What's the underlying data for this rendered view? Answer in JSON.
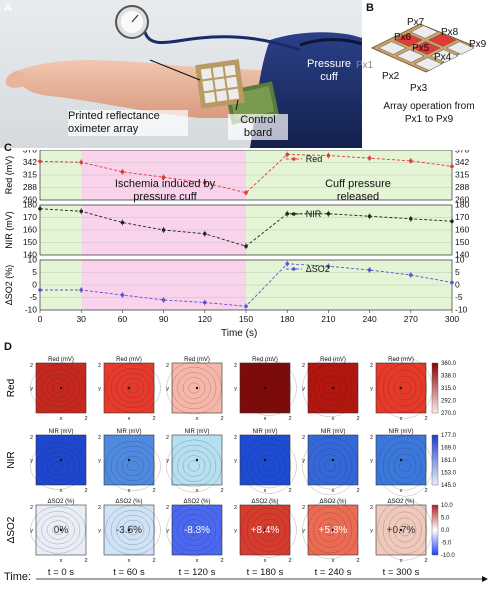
{
  "panel_labels": {
    "A": "A",
    "B": "B",
    "C": "C",
    "D": "D"
  },
  "photo": {
    "pressure_cuff": "Pressure cuff",
    "oximeter_array": "Printed reflectance oximeter array",
    "control_board": "Control board"
  },
  "array": {
    "pixels": [
      "Px1",
      "Px2",
      "Px3",
      "Px4",
      "Px5",
      "Px6",
      "Px7",
      "Px8",
      "Px9"
    ],
    "caption": "Array operation from Px1 to Px9"
  },
  "chart_data": [
    {
      "type": "line",
      "ylabel": "Red (mV)",
      "legend": "Red",
      "color": "#e53935",
      "ylim": [
        260,
        370
      ],
      "yticks": [
        260,
        288,
        315,
        342,
        370
      ],
      "x": [
        0,
        30,
        60,
        90,
        120,
        150,
        180,
        210,
        240,
        270,
        300
      ],
      "values": [
        345,
        343,
        322,
        310,
        298,
        276,
        360,
        358,
        352,
        346,
        334
      ]
    },
    {
      "type": "line",
      "ylabel": "NIR (mV)",
      "legend": "NIR",
      "color": "#222222",
      "ylim": [
        140,
        180
      ],
      "yticks": [
        140,
        150,
        160,
        170,
        180
      ],
      "x": [
        0,
        30,
        60,
        90,
        120,
        150,
        180,
        210,
        240,
        270,
        300
      ],
      "values": [
        177,
        175,
        166,
        160,
        157,
        147,
        173,
        173,
        171,
        169,
        167
      ]
    },
    {
      "type": "line",
      "ylabel": "ΔSO2 (%)",
      "legend": "ΔSO2",
      "color": "#5b4fd6",
      "ylim": [
        -10,
        10
      ],
      "yticks": [
        -10,
        -5,
        0,
        5,
        10
      ],
      "x": [
        0,
        30,
        60,
        90,
        120,
        150,
        180,
        210,
        240,
        270,
        300
      ],
      "values": [
        -2,
        -2,
        -4,
        -6,
        -7,
        -8.5,
        8.5,
        7.5,
        6,
        4,
        1
      ]
    }
  ],
  "line_chart_common": {
    "xlabel": "Time (s)",
    "xticks": [
      0,
      30,
      60,
      90,
      120,
      150,
      180,
      210,
      240,
      270,
      300
    ],
    "annotation_ischemia": "Ischemia induced by pressure cuff",
    "annotation_release": "Cuff pressure released"
  },
  "maps": {
    "row_labels": [
      "Red",
      "NIR",
      "ΔSO2"
    ],
    "titles": [
      "Red (mV)",
      "NIR (mV)",
      "ΔSO2 (%)"
    ],
    "times": [
      "t = 0 s",
      "t = 60 s",
      "t = 120 s",
      "t = 180 s",
      "t = 240 s",
      "t = 300 s"
    ],
    "time_label": "Time:",
    "so2_values": [
      "0%",
      "-3.5%",
      "-8.8%",
      "+8.4%",
      "+5.8%",
      "+0.7%"
    ],
    "colorbars": [
      {
        "ticks": [
          "360.0",
          "338.0",
          "315.0",
          "292.0",
          "270.0"
        ],
        "top": "#8b0000",
        "bottom": "#ffece6"
      },
      {
        "ticks": [
          "177.0",
          "169.0",
          "161.0",
          "153.0",
          "145.0"
        ],
        "top": "#1a3ec9",
        "bottom": "#e8f1fb"
      },
      {
        "ticks": [
          "10.0",
          "5.0",
          "0.0",
          "-5.0",
          "-10.0"
        ],
        "top": "#b71c1c",
        "bottom": "#1e40ff"
      }
    ],
    "axis_x": "x",
    "axis_y": "y",
    "tick_1": "1",
    "tick_2": "2",
    "red_colors": [
      "#c62820",
      "#e53a2c",
      "#f7b7a8",
      "#7f0a0a",
      "#b3150f",
      "#e5392a"
    ],
    "nir_colors": [
      "#1f46cf",
      "#4f8ae0",
      "#b6dff2",
      "#1e4bd3",
      "#3468d8",
      "#3b78dc"
    ],
    "so2_colors": [
      "#e9edf6",
      "#cfe2f6",
      "#4a68f0",
      "#d63b2d",
      "#ec6b53",
      "#f0c9bd"
    ]
  }
}
